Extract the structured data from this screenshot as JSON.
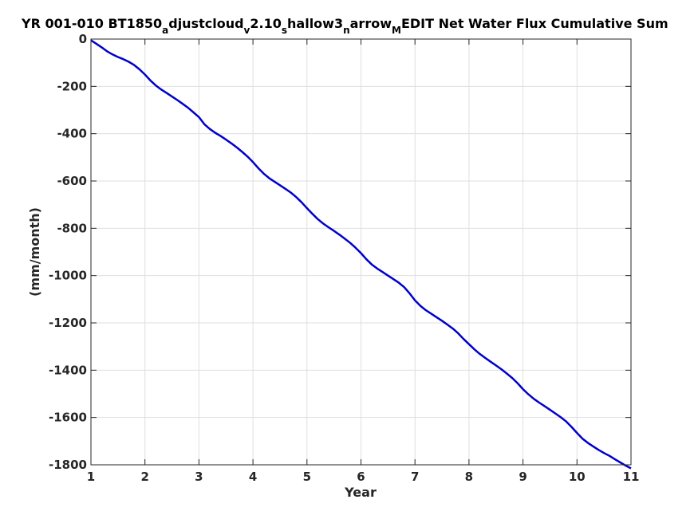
{
  "chart_data": {
    "type": "line",
    "title_parts": [
      {
        "text": "YR 001-010 BT1850",
        "sub": false
      },
      {
        "text": "a",
        "sub": true
      },
      {
        "text": "djustcloud",
        "sub": false
      },
      {
        "text": "v",
        "sub": true
      },
      {
        "text": "2.10",
        "sub": false
      },
      {
        "text": "s",
        "sub": true
      },
      {
        "text": "hallow3",
        "sub": false
      },
      {
        "text": "n",
        "sub": true
      },
      {
        "text": "arrow",
        "sub": false
      },
      {
        "text": "M",
        "sub": true
      },
      {
        "text": "EDIT Net Water Flux Cumulative Sum",
        "sub": false
      }
    ],
    "xlabel": "Year",
    "ylabel": "(mm/month)",
    "xlim": [
      1,
      11
    ],
    "ylim": [
      -1800,
      0
    ],
    "xticks": [
      1,
      2,
      3,
      4,
      5,
      6,
      7,
      8,
      9,
      10,
      11
    ],
    "yticks": [
      0,
      -200,
      -400,
      -600,
      -800,
      -1000,
      -1200,
      -1400,
      -1600,
      -1800
    ],
    "grid": true,
    "line_color": "#0000cd",
    "series": [
      {
        "x": [
          1.0,
          1.1,
          1.2,
          1.3,
          1.4,
          1.5,
          1.6,
          1.7,
          1.8,
          1.9,
          2.0,
          2.1,
          2.2,
          2.3,
          2.4,
          2.5,
          2.6,
          2.7,
          2.8,
          2.9,
          3.0,
          3.1,
          3.2,
          3.3,
          3.4,
          3.5,
          3.6,
          3.7,
          3.8,
          3.9,
          4.0,
          4.1,
          4.2,
          4.3,
          4.4,
          4.5,
          4.6,
          4.7,
          4.8,
          4.9,
          5.0,
          5.1,
          5.2,
          5.3,
          5.4,
          5.5,
          5.6,
          5.7,
          5.8,
          5.9,
          6.0,
          6.1,
          6.2,
          6.3,
          6.4,
          6.5,
          6.6,
          6.7,
          6.8,
          6.9,
          7.0,
          7.1,
          7.2,
          7.3,
          7.4,
          7.5,
          7.6,
          7.7,
          7.8,
          7.9,
          8.0,
          8.1,
          8.2,
          8.3,
          8.4,
          8.5,
          8.6,
          8.7,
          8.8,
          8.9,
          9.0,
          9.1,
          9.2,
          9.3,
          9.4,
          9.5,
          9.6,
          9.7,
          9.8,
          9.9,
          10.0,
          10.1,
          10.2,
          10.3,
          10.4,
          10.5,
          10.6,
          10.7,
          10.8,
          10.9,
          11.0
        ],
        "y": [
          -5,
          -20,
          -35,
          -52,
          -65,
          -76,
          -85,
          -96,
          -110,
          -128,
          -150,
          -175,
          -196,
          -213,
          -228,
          -243,
          -258,
          -274,
          -291,
          -310,
          -330,
          -360,
          -380,
          -396,
          -410,
          -425,
          -441,
          -458,
          -477,
          -497,
          -520,
          -546,
          -569,
          -588,
          -603,
          -618,
          -633,
          -649,
          -668,
          -690,
          -715,
          -739,
          -761,
          -780,
          -796,
          -811,
          -827,
          -844,
          -862,
          -882,
          -905,
          -931,
          -953,
          -970,
          -985,
          -1000,
          -1015,
          -1030,
          -1049,
          -1075,
          -1105,
          -1128,
          -1146,
          -1161,
          -1176,
          -1191,
          -1207,
          -1224,
          -1244,
          -1268,
          -1290,
          -1312,
          -1331,
          -1348,
          -1364,
          -1380,
          -1396,
          -1414,
          -1433,
          -1455,
          -1480,
          -1502,
          -1521,
          -1537,
          -1552,
          -1567,
          -1583,
          -1599,
          -1617,
          -1640,
          -1665,
          -1689,
          -1707,
          -1722,
          -1737,
          -1750,
          -1762,
          -1776,
          -1790,
          -1803,
          -1815
        ]
      }
    ]
  }
}
